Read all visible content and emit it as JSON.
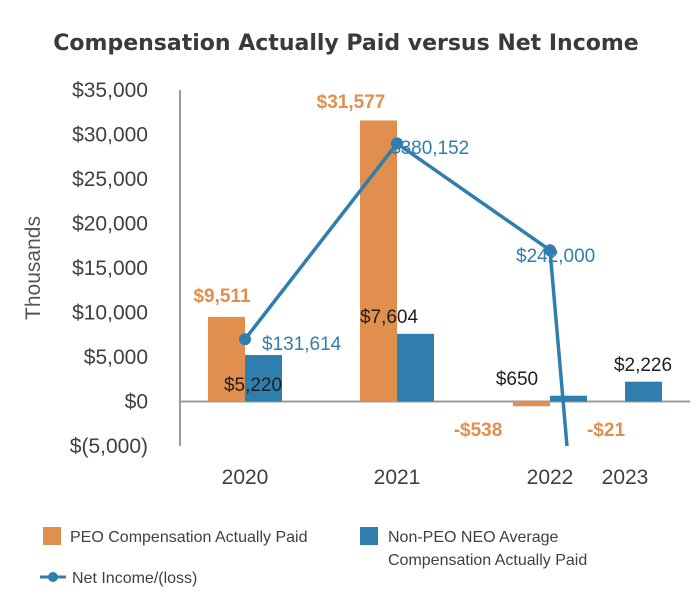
{
  "chart_data": {
    "type": "bar",
    "title": "Compensation Actually Paid versus Net Income",
    "ylabel": "Thousands",
    "xlabel": "",
    "categories": [
      "2020",
      "2021",
      "2022",
      "2023"
    ],
    "ylim": [
      -5000,
      35000
    ],
    "yticks": [
      35000,
      30000,
      25000,
      20000,
      15000,
      10000,
      5000,
      0,
      -5000
    ],
    "ytick_labels": [
      "$35,000",
      "$30,000",
      "$25,000",
      "$20,000",
      "$15,000",
      "$10,000",
      "$5,000",
      "$0",
      "$(5,000)"
    ],
    "grid": false,
    "legend_position": "bottom",
    "series": [
      {
        "name": "PEO Compensation Actually Paid",
        "kind": "bar",
        "color": "#E08F4E",
        "values": [
          9511,
          31577,
          -538,
          -21
        ],
        "labels": [
          "$9,511",
          "$31,577",
          "-$538",
          "-$21"
        ]
      },
      {
        "name": "Non-PEO NEO Average Compensation Actually Paid",
        "kind": "bar",
        "color": "#2F7EAD",
        "values": [
          5220,
          7604,
          650,
          2226
        ],
        "labels": [
          "$5,220",
          "$7,604",
          "$650",
          "$2,226"
        ]
      },
      {
        "name": "Net Income/(loss)",
        "kind": "line",
        "color": "#2F7EAD",
        "values": [
          131614,
          380152,
          242000,
          null
        ],
        "labels": [
          "$131,614",
          "$380,152",
          "$242,000",
          ""
        ],
        "approx_plotted_values": [
          7000,
          29000,
          17000
        ]
      }
    ],
    "legend": [
      {
        "label": "PEO Compensation Actually Paid",
        "marker": "square",
        "color": "#E08F4E"
      },
      {
        "label_lines": [
          "Non-PEO NEO Average",
          "Compensation Actually Paid"
        ],
        "marker": "square",
        "color": "#2F7EAD"
      },
      {
        "label": "Net Income/(loss)",
        "marker": "line-dot",
        "color": "#2F7EAD"
      }
    ]
  }
}
